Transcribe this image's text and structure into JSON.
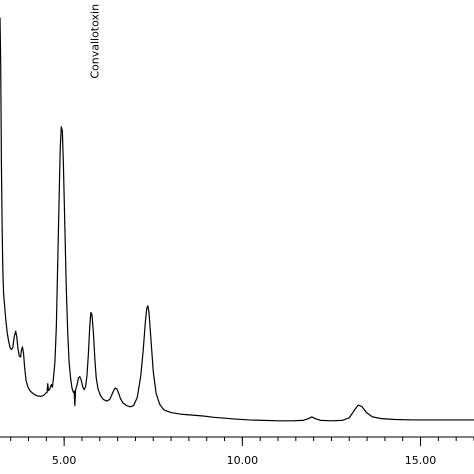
{
  "chart_data": {
    "type": "line",
    "title": "",
    "xlabel": "",
    "ylabel": "",
    "xlim": [
      3.2,
      16.5
    ],
    "ylim": [
      0,
      100
    ],
    "grid": false,
    "x_ticks": [
      {
        "value": 5.0,
        "label": "5.00"
      },
      {
        "value": 10.0,
        "label": "10.00"
      },
      {
        "value": 15.0,
        "label": "15.00"
      }
    ],
    "minor_tick_step": 0.5,
    "annotations": [
      {
        "text": "Convallotoxin",
        "x": 5.85,
        "y": 82
      }
    ],
    "series": [
      {
        "color": "#000000",
        "points": [
          [
            3.2,
            96
          ],
          [
            3.22,
            85
          ],
          [
            3.24,
            62
          ],
          [
            3.26,
            48
          ],
          [
            3.28,
            38
          ],
          [
            3.3,
            33
          ],
          [
            3.33,
            30
          ],
          [
            3.36,
            27
          ],
          [
            3.4,
            24
          ],
          [
            3.44,
            22
          ],
          [
            3.48,
            20.5
          ],
          [
            3.52,
            20
          ],
          [
            3.56,
            20.5
          ],
          [
            3.6,
            23
          ],
          [
            3.64,
            24.2
          ],
          [
            3.67,
            23
          ],
          [
            3.7,
            20.5
          ],
          [
            3.74,
            18.5
          ],
          [
            3.78,
            18.3
          ],
          [
            3.8,
            19.8
          ],
          [
            3.83,
            20.6
          ],
          [
            3.86,
            19.2
          ],
          [
            3.89,
            16
          ],
          [
            3.93,
            13
          ],
          [
            3.98,
            11.5
          ],
          [
            4.05,
            10.5
          ],
          [
            4.15,
            9.8
          ],
          [
            4.25,
            9.4
          ],
          [
            4.35,
            9.3
          ],
          [
            4.42,
            9.5
          ],
          [
            4.48,
            10
          ],
          [
            4.52,
            10.2
          ],
          [
            4.54,
            12.2
          ],
          [
            4.56,
            10.6
          ],
          [
            4.6,
            11
          ],
          [
            4.64,
            12
          ],
          [
            4.67,
            11.4
          ],
          [
            4.7,
            13.5
          ],
          [
            4.74,
            17
          ],
          [
            4.78,
            25
          ],
          [
            4.82,
            40
          ],
          [
            4.86,
            55
          ],
          [
            4.89,
            66
          ],
          [
            4.92,
            71
          ],
          [
            4.95,
            70
          ],
          [
            4.98,
            62
          ],
          [
            5.02,
            48
          ],
          [
            5.06,
            34
          ],
          [
            5.1,
            24
          ],
          [
            5.14,
            17
          ],
          [
            5.18,
            13.5
          ],
          [
            5.22,
            11.2
          ],
          [
            5.26,
            10.2
          ],
          [
            5.28,
            10.5
          ],
          [
            5.3,
            7.2
          ],
          [
            5.32,
            10.8
          ],
          [
            5.36,
            11.8
          ],
          [
            5.4,
            13.5
          ],
          [
            5.44,
            13.8
          ],
          [
            5.48,
            13
          ],
          [
            5.52,
            11.5
          ],
          [
            5.56,
            10.8
          ],
          [
            5.6,
            11.5
          ],
          [
            5.64,
            14
          ],
          [
            5.68,
            19
          ],
          [
            5.72,
            25.5
          ],
          [
            5.75,
            28.5
          ],
          [
            5.78,
            28
          ],
          [
            5.82,
            24
          ],
          [
            5.86,
            18
          ],
          [
            5.9,
            13.5
          ],
          [
            5.95,
            11
          ],
          [
            6.02,
            9.5
          ],
          [
            6.1,
            8.6
          ],
          [
            6.2,
            8.2
          ],
          [
            6.28,
            8.6
          ],
          [
            6.33,
            9.5
          ],
          [
            6.38,
            10.5
          ],
          [
            6.43,
            11.2
          ],
          [
            6.48,
            11
          ],
          [
            6.53,
            10
          ],
          [
            6.58,
            8.8
          ],
          [
            6.65,
            7.8
          ],
          [
            6.75,
            7.2
          ],
          [
            6.85,
            6.9
          ],
          [
            6.95,
            7.2
          ],
          [
            7.05,
            9
          ],
          [
            7.15,
            14
          ],
          [
            7.22,
            20
          ],
          [
            7.28,
            26.5
          ],
          [
            7.32,
            29.5
          ],
          [
            7.35,
            30
          ],
          [
            7.38,
            28.5
          ],
          [
            7.43,
            23
          ],
          [
            7.5,
            15
          ],
          [
            7.58,
            10
          ],
          [
            7.68,
            7.5
          ],
          [
            7.8,
            6.2
          ],
          [
            8.0,
            5.6
          ],
          [
            8.3,
            5.2
          ],
          [
            8.6,
            5
          ],
          [
            8.9,
            4.8
          ],
          [
            9.2,
            4.5
          ],
          [
            9.5,
            4.3
          ],
          [
            9.8,
            4.1
          ],
          [
            10.2,
            3.9
          ],
          [
            10.6,
            3.8
          ],
          [
            11.0,
            3.7
          ],
          [
            11.4,
            3.7
          ],
          [
            11.7,
            3.8
          ],
          [
            11.85,
            4.2
          ],
          [
            11.95,
            4.6
          ],
          [
            12.05,
            4.2
          ],
          [
            12.2,
            3.8
          ],
          [
            12.5,
            3.7
          ],
          [
            12.8,
            3.8
          ],
          [
            13.0,
            4.4
          ],
          [
            13.15,
            6.2
          ],
          [
            13.25,
            7.3
          ],
          [
            13.35,
            7
          ],
          [
            13.48,
            5.6
          ],
          [
            13.65,
            4.6
          ],
          [
            13.9,
            4.2
          ],
          [
            14.3,
            4
          ],
          [
            14.8,
            3.9
          ],
          [
            15.4,
            3.9
          ],
          [
            16.0,
            3.9
          ],
          [
            16.5,
            3.9
          ]
        ]
      }
    ]
  }
}
